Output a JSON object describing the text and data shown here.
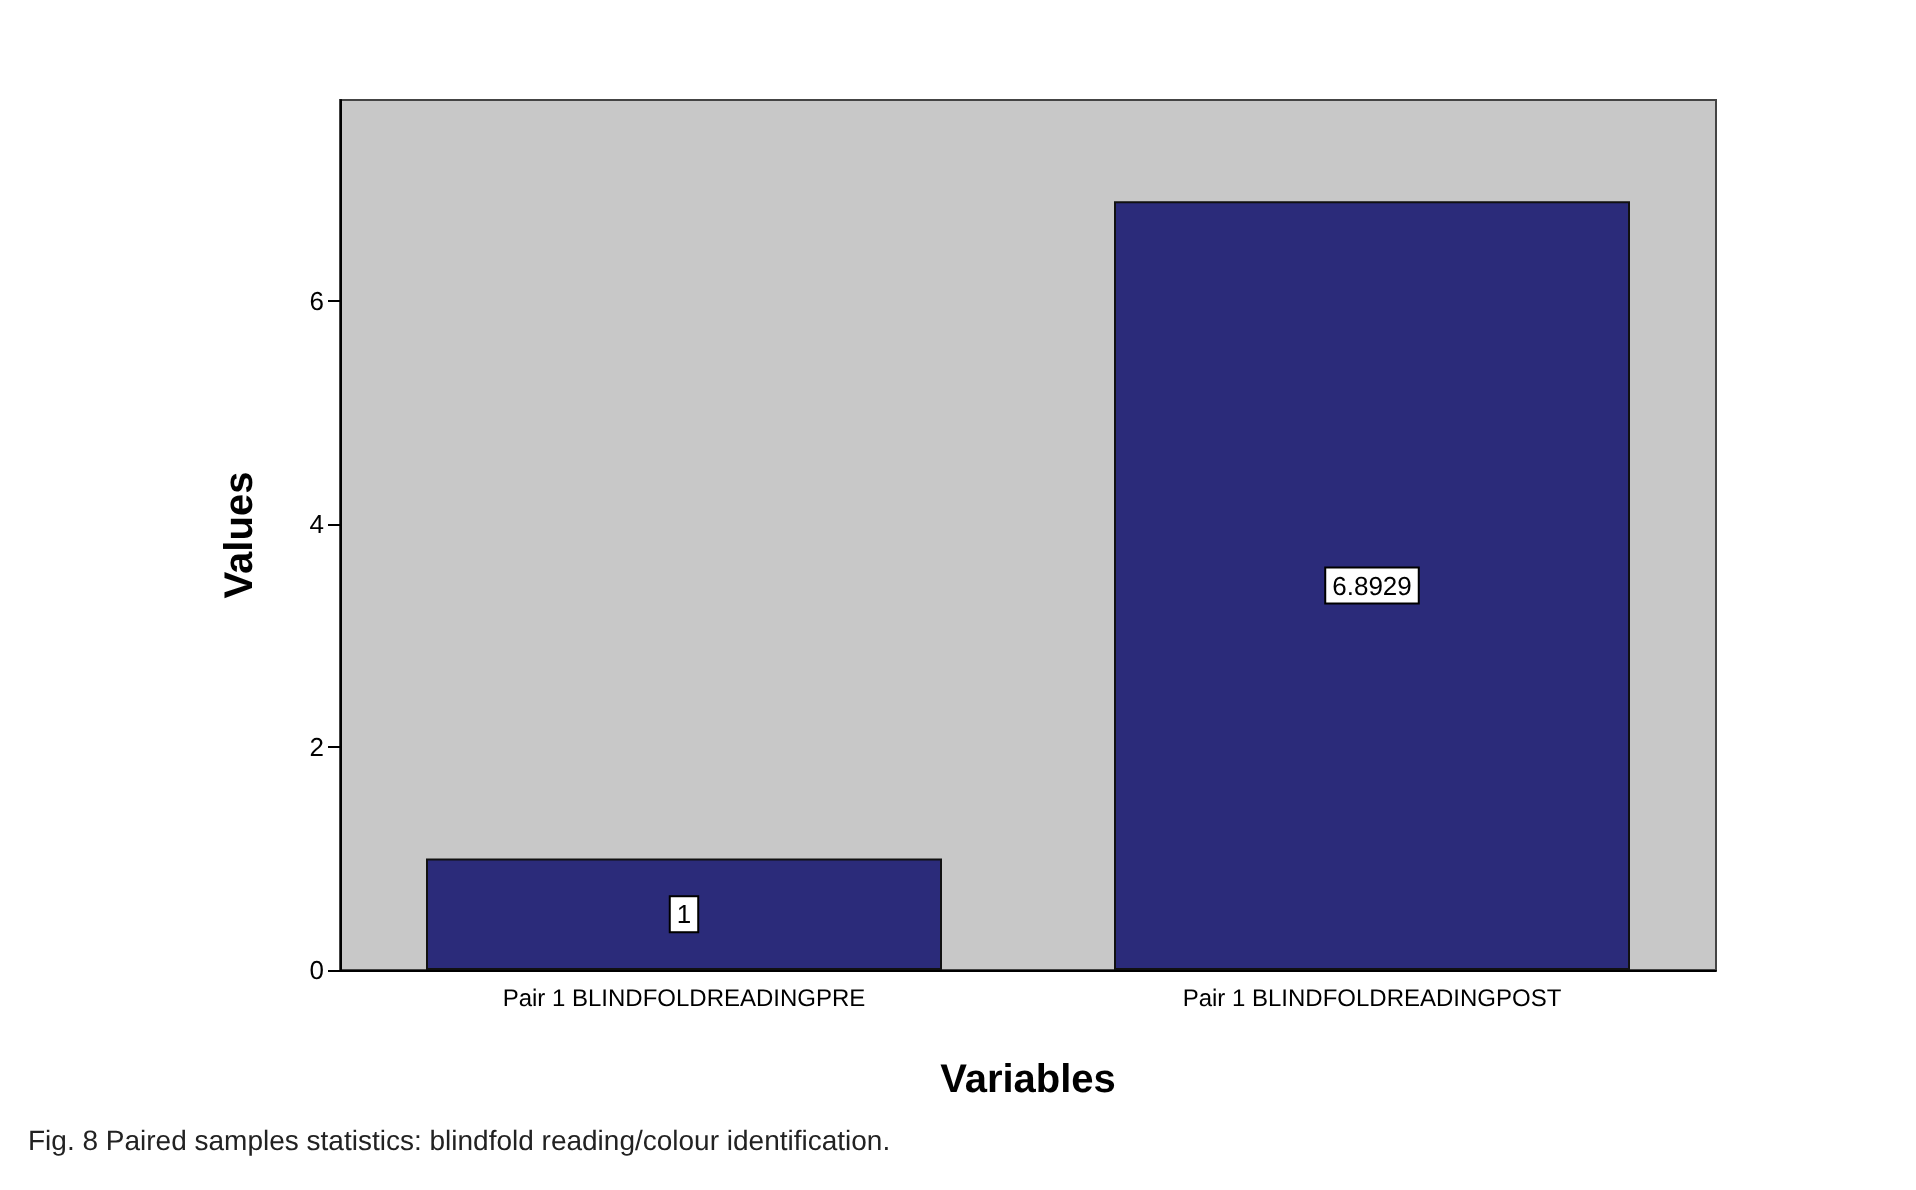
{
  "chart_data": {
    "type": "bar",
    "categories": [
      "Pair 1 BLINDFOLDREADINGPRE",
      "Pair 1 BLINDFOLDREADINGPOST"
    ],
    "values": [
      1,
      6.8929
    ],
    "color": "#2b2b7a",
    "xlabel": "Variables",
    "ylabel": "Values",
    "ylim": [
      0,
      7.8
    ],
    "yticks": [
      0,
      2,
      4,
      6
    ],
    "grid": false,
    "data_labels": true,
    "annotations": [
      "Fig. 8  Paired samples statistics: blindfold reading/colour identification."
    ]
  }
}
